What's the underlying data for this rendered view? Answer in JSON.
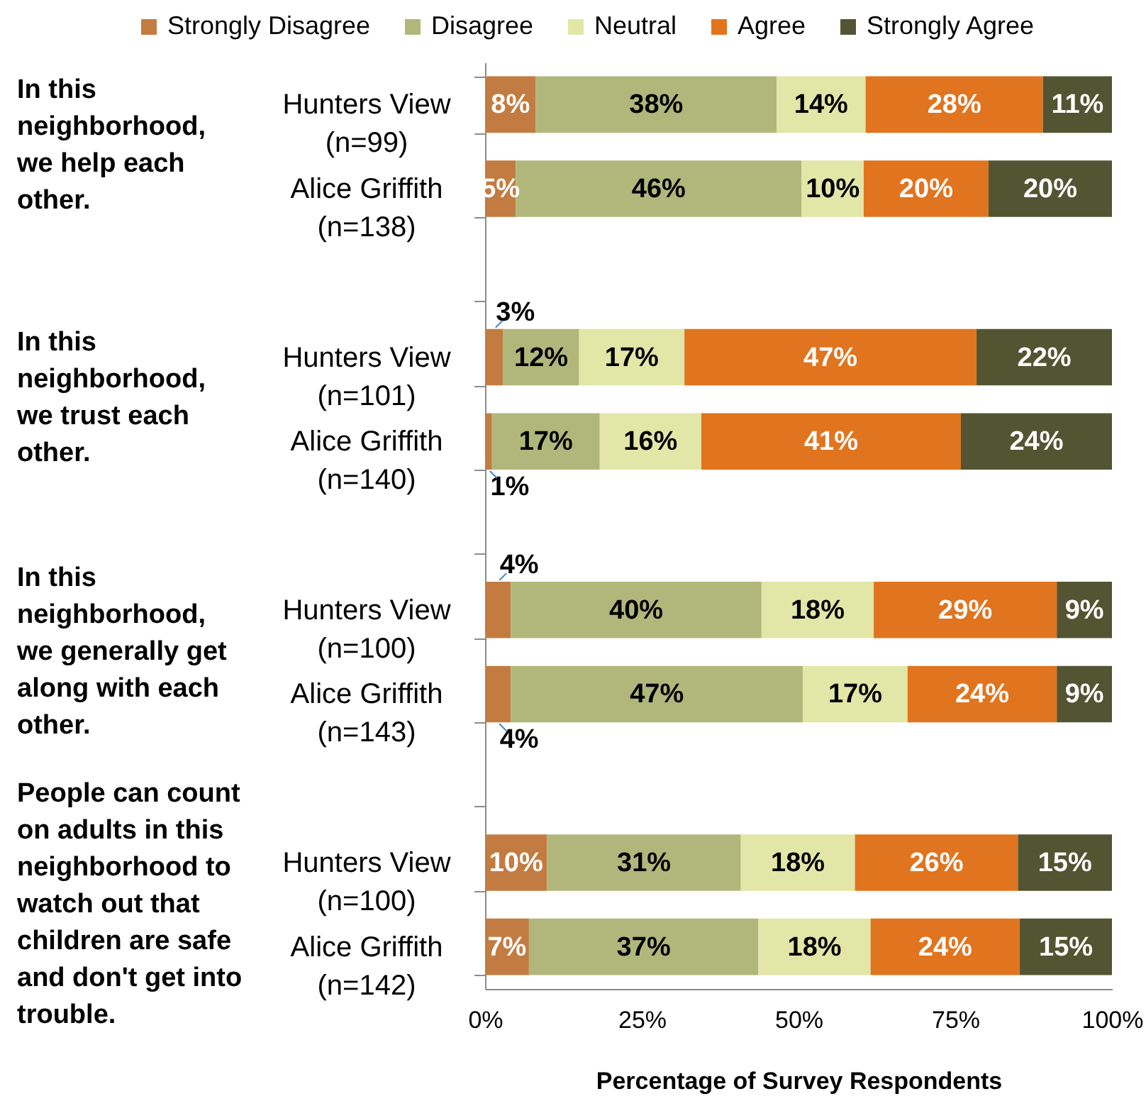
{
  "chart_data": {
    "type": "bar",
    "orientation": "horizontal",
    "stacked": true,
    "categories": [
      "Hunters View (n=99)",
      "Alice Griffith (n=138)",
      "Hunters View (n=101)",
      "Alice Griffith (n=140)",
      "Hunters View (n=100)",
      "Alice Griffith (n=143)",
      "Hunters View (n=100)",
      "Alice Griffith (n=142)"
    ],
    "series": [
      {
        "name": "Strongly Disagree",
        "color": "#c27c41",
        "values": [
          8.1,
          4.9,
          2.9,
          1.1,
          4.1,
          4.1,
          9.9,
          7.0
        ],
        "value_labels": [
          "8%",
          "5%",
          "3%",
          "1%",
          "4%",
          "4%",
          "10%",
          "7%"
        ]
      },
      {
        "name": "Disagree",
        "color": "#b1b77b",
        "values": [
          38.4,
          45.6,
          12.1,
          17.2,
          40.0,
          46.6,
          30.9,
          36.6
        ],
        "value_labels": [
          "38%",
          "46%",
          "12%",
          "17%",
          "40%",
          "47%",
          "31%",
          "37%"
        ]
      },
      {
        "name": "Neutral",
        "color": "#e2e6a7",
        "values": [
          14.2,
          9.9,
          16.8,
          16.2,
          17.9,
          16.7,
          18.2,
          17.9
        ],
        "value_labels": [
          "14%",
          "10%",
          "17%",
          "16%",
          "18%",
          "17%",
          "18%",
          "18%"
        ]
      },
      {
        "name": "Agree",
        "color": "#e1741e",
        "values": [
          28.3,
          19.9,
          46.6,
          41.4,
          29.2,
          23.8,
          26.0,
          23.8
        ],
        "value_labels": [
          "28%",
          "20%",
          "47%",
          "41%",
          "29%",
          "24%",
          "26%",
          "24%"
        ]
      },
      {
        "name": "Strongly Agree",
        "color": "#535431",
        "values": [
          11.0,
          19.7,
          21.6,
          24.1,
          8.8,
          8.8,
          15.0,
          14.7
        ],
        "value_labels": [
          "11%",
          "20%",
          "22%",
          "24%",
          "9%",
          "9%",
          "15%",
          "15%"
        ]
      }
    ],
    "xlim": [
      0,
      100
    ],
    "xticks": [
      {
        "value": 0,
        "label": "0%"
      },
      {
        "value": 25,
        "label": "25%"
      },
      {
        "value": 50,
        "label": "50%"
      },
      {
        "value": 75,
        "label": "75%"
      },
      {
        "value": 100,
        "label": "100%"
      }
    ],
    "xlabel": "Percentage of Survey Respondents",
    "legend": "top",
    "annotations": [
      "In this neighborhood, we help each other.",
      "In this neighborhood, we trust each other.",
      "In this neighborhood, we generally get along with each other.",
      "People can count on adults in this neighborhood to watch out that children are safe and don't get into trouble."
    ]
  }
}
